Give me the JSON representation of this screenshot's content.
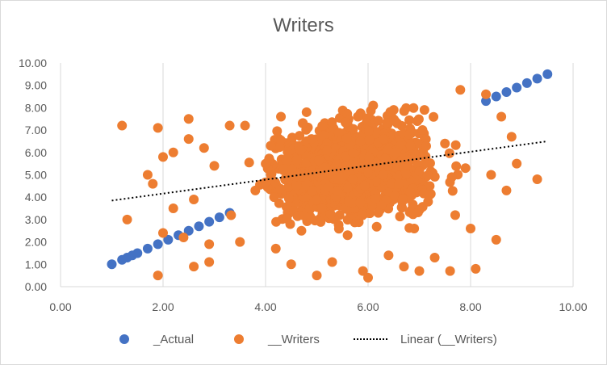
{
  "chart_data": {
    "type": "scatter",
    "title": "Writers",
    "xlim": [
      0,
      10
    ],
    "ylim": [
      0,
      10
    ],
    "x_ticks": [
      "0.00",
      "2.00",
      "4.00",
      "6.00",
      "8.00",
      "10.00"
    ],
    "y_ticks": [
      "0.00",
      "1.00",
      "2.00",
      "3.00",
      "4.00",
      "5.00",
      "6.00",
      "7.00",
      "8.00",
      "9.00",
      "10.00"
    ],
    "grid": "vertical major gridlines",
    "legend_position": "bottom",
    "series": [
      {
        "name": "_Actual",
        "color": "#4472c4",
        "marker": "circle",
        "points_from": [
          1.0,
          1.0
        ],
        "points_to": [
          9.5,
          9.5
        ],
        "description_values": [
          [
            1.0,
            1.0
          ],
          [
            1.2,
            1.2
          ],
          [
            1.3,
            1.3
          ],
          [
            1.4,
            1.4
          ],
          [
            1.5,
            1.5
          ],
          [
            1.7,
            1.7
          ],
          [
            1.9,
            1.9
          ],
          [
            2.1,
            2.1
          ],
          [
            2.3,
            2.3
          ],
          [
            2.5,
            2.5
          ],
          [
            2.7,
            2.7
          ],
          [
            2.9,
            2.9
          ],
          [
            3.1,
            3.1
          ],
          [
            3.3,
            3.3
          ],
          [
            8.3,
            8.3
          ],
          [
            8.5,
            8.5
          ],
          [
            8.7,
            8.7
          ],
          [
            8.9,
            8.9
          ],
          [
            9.1,
            9.1
          ],
          [
            9.3,
            9.3
          ],
          [
            9.5,
            9.5
          ]
        ]
      },
      {
        "name": "__Writers",
        "color": "#ed7d31",
        "marker": "circle",
        "sample_values": [
          [
            1.2,
            7.2
          ],
          [
            1.3,
            3.0
          ],
          [
            1.7,
            5.0
          ],
          [
            1.8,
            4.6
          ],
          [
            1.9,
            7.1
          ],
          [
            1.9,
            0.5
          ],
          [
            2.0,
            5.8
          ],
          [
            2.0,
            2.4
          ],
          [
            2.2,
            3.5
          ],
          [
            2.2,
            6.0
          ],
          [
            2.4,
            2.2
          ],
          [
            2.5,
            6.6
          ],
          [
            2.5,
            7.5
          ],
          [
            2.6,
            0.9
          ],
          [
            2.6,
            3.9
          ],
          [
            2.8,
            6.2
          ],
          [
            2.9,
            1.1
          ],
          [
            2.9,
            1.9
          ],
          [
            3.0,
            5.4
          ],
          [
            3.3,
            7.2
          ],
          [
            3.5,
            2.0
          ],
          [
            3.6,
            7.2
          ],
          [
            3.8,
            4.3
          ],
          [
            4.1,
            6.3
          ],
          [
            4.2,
            1.7
          ],
          [
            4.3,
            7.6
          ],
          [
            4.5,
            1.0
          ],
          [
            4.6,
            4.5
          ],
          [
            4.7,
            2.5
          ],
          [
            4.8,
            7.8
          ],
          [
            5.0,
            0.5
          ],
          [
            5.1,
            3.5
          ],
          [
            5.2,
            6.1
          ],
          [
            5.3,
            1.1
          ],
          [
            5.5,
            4.9
          ],
          [
            5.6,
            2.3
          ],
          [
            5.8,
            7.6
          ],
          [
            5.9,
            0.7
          ],
          [
            6.0,
            5.1
          ],
          [
            6.0,
            0.4
          ],
          [
            6.1,
            8.1
          ],
          [
            6.2,
            3.3
          ],
          [
            6.3,
            6.6
          ],
          [
            6.4,
            1.4
          ],
          [
            6.5,
            7.9
          ],
          [
            6.6,
            4.6
          ],
          [
            6.7,
            0.9
          ],
          [
            6.8,
            6.8
          ],
          [
            6.9,
            2.6
          ],
          [
            7.0,
            0.7
          ],
          [
            7.1,
            7.9
          ],
          [
            7.2,
            4.1
          ],
          [
            7.3,
            1.3
          ],
          [
            7.5,
            6.4
          ],
          [
            7.6,
            0.7
          ],
          [
            7.7,
            3.2
          ],
          [
            7.8,
            8.8
          ],
          [
            7.9,
            5.3
          ],
          [
            8.0,
            2.6
          ],
          [
            8.1,
            0.8
          ],
          [
            8.3,
            8.6
          ],
          [
            8.4,
            5.0
          ],
          [
            8.5,
            2.1
          ],
          [
            8.6,
            7.6
          ],
          [
            8.7,
            4.3
          ],
          [
            8.8,
            6.7
          ],
          [
            8.9,
            5.5
          ],
          [
            9.3,
            4.8
          ]
        ]
      },
      {
        "name": "Linear (__Writers)",
        "type": "trendline",
        "style": "dotted",
        "color": "#000000",
        "x": [
          1.0,
          9.5
        ],
        "y": [
          3.85,
          6.5
        ]
      }
    ]
  }
}
